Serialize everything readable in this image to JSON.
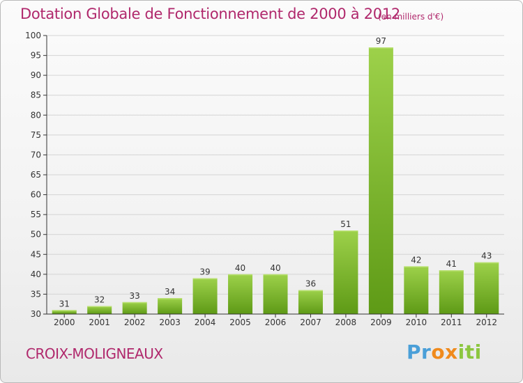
{
  "header": {
    "title": "Dotation Globale de Fonctionnement de 2000 à 2012",
    "subtitle": "(en milliers d'€)"
  },
  "footer": {
    "commune": "CROIX-MOLIGNEAUX",
    "logo": {
      "letters": [
        "P",
        "r",
        "o",
        "x",
        "i",
        "t",
        "i"
      ],
      "colors": [
        "#4a9fd8",
        "#4a9fd8",
        "#f08a1c",
        "#f08a1c",
        "#8cc63f",
        "#8cc63f",
        "#8cc63f"
      ]
    }
  },
  "chart_data": {
    "type": "bar",
    "categories": [
      "2000",
      "2001",
      "2002",
      "2003",
      "2004",
      "2005",
      "2006",
      "2007",
      "2008",
      "2009",
      "2010",
      "2011",
      "2012"
    ],
    "values": [
      31,
      32,
      33,
      34,
      39,
      40,
      40,
      36,
      51,
      97,
      42,
      41,
      43
    ],
    "ylim": [
      30,
      100
    ],
    "yticks": [
      30,
      35,
      40,
      45,
      50,
      55,
      60,
      65,
      70,
      75,
      80,
      85,
      90,
      95,
      100
    ],
    "grid": true,
    "colors": {
      "bar_top": "#9dd14a",
      "bar_bottom": "#5e9a16",
      "grid": "#d4d4d4",
      "axis": "#333333"
    }
  }
}
